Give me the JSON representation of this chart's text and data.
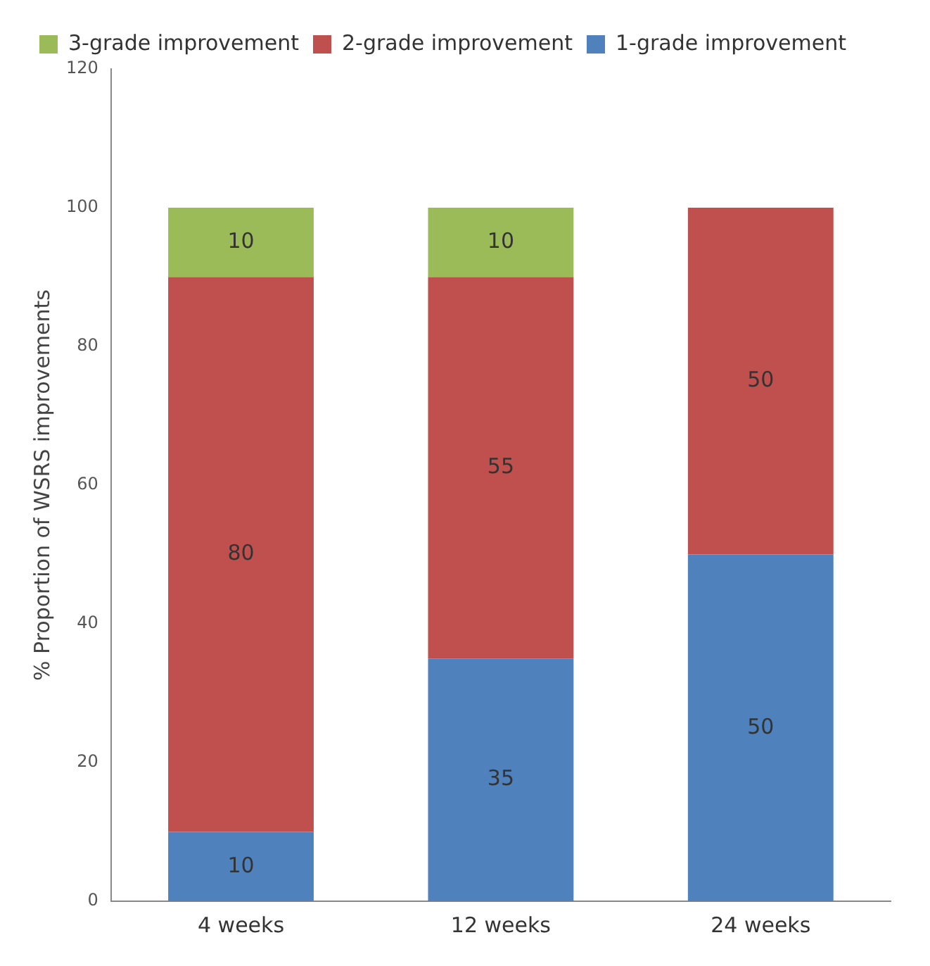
{
  "chart_data": {
    "type": "bar",
    "stacked": true,
    "ylabel": "% Proportion of WSRS improvements",
    "categories": [
      "4 weeks",
      "12 weeks",
      "24 weeks"
    ],
    "series": [
      {
        "name": "1-grade improvement",
        "color": "#4f81bd",
        "values": [
          10,
          35,
          50
        ]
      },
      {
        "name": "2-grade improvement",
        "color": "#c0504d",
        "values": [
          80,
          55,
          50
        ]
      },
      {
        "name": "3-grade improvement",
        "color": "#9bbb59",
        "values": [
          10,
          10,
          null
        ]
      }
    ],
    "ylim": [
      0,
      120
    ],
    "yticks": [
      0,
      20,
      40,
      60,
      80,
      100,
      120
    ],
    "grid": false,
    "legend": "top left",
    "data_labels": true
  }
}
